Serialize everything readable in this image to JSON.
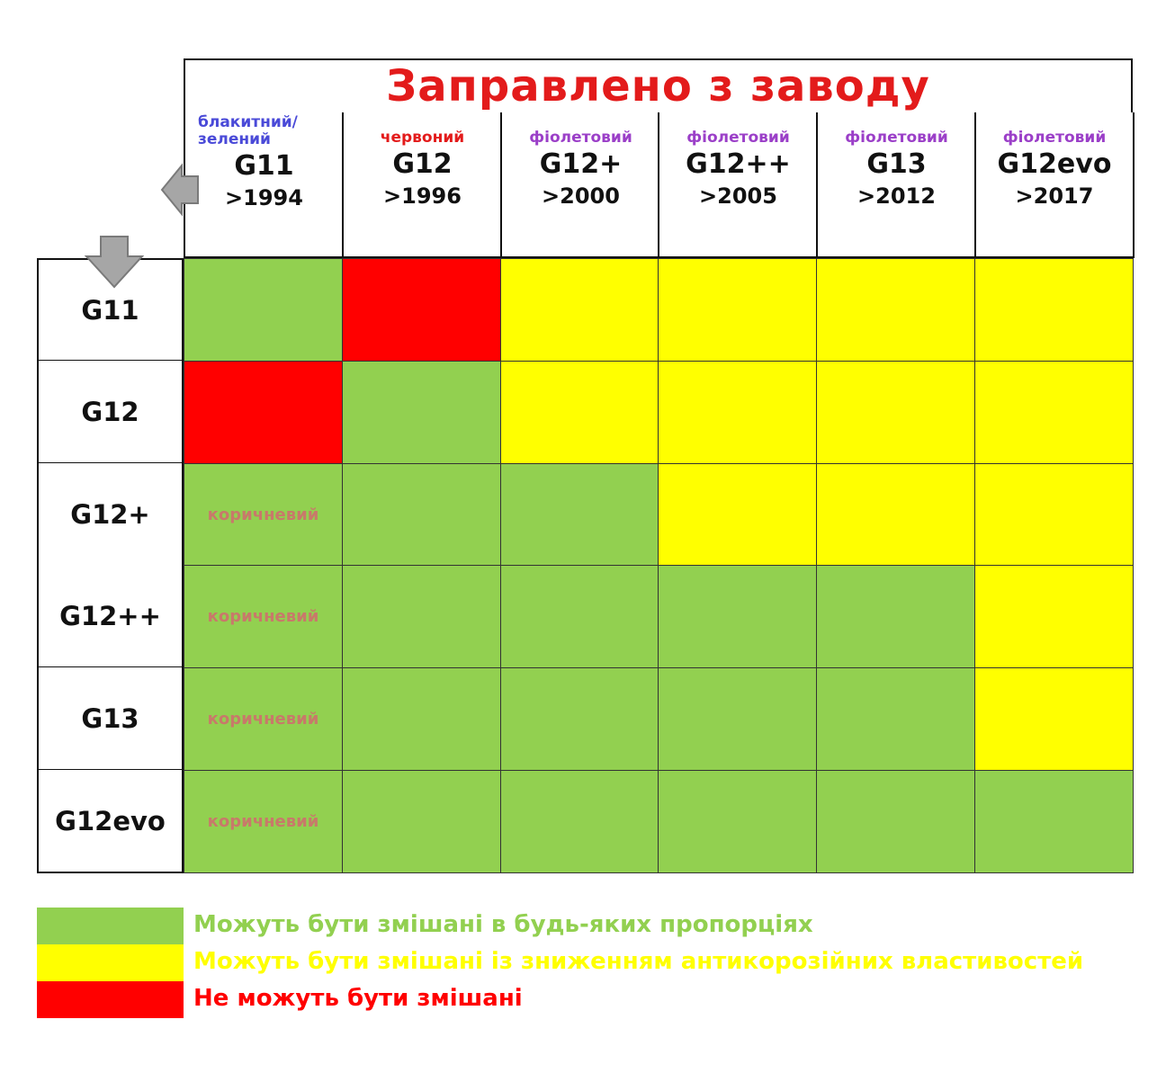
{
  "chart_data": {
    "type": "table",
    "title": "Заправлено з заводу",
    "columns": [
      {
        "color_label": "блакитний/\nзелений",
        "color": "#4a4ad8",
        "code": "G11",
        "year": ">1994"
      },
      {
        "color_label": "червоний",
        "color": "#e31b1b",
        "code": "G12",
        "year": ">1996"
      },
      {
        "color_label": "фіолетовий",
        "color": "#9b3fc8",
        "code": "G12+",
        "year": ">2000"
      },
      {
        "color_label": "фіолетовий",
        "color": "#9b3fc8",
        "code": "G12++",
        "year": ">2005"
      },
      {
        "color_label": "фіолетовий",
        "color": "#9b3fc8",
        "code": "G13",
        "year": ">2012"
      },
      {
        "color_label": "фіолетовий",
        "color": "#9b3fc8",
        "code": "G12evo",
        "year": ">2017"
      }
    ],
    "rows": [
      "G11",
      "G12",
      "G12+",
      "G12++",
      "G13",
      "G12evo"
    ],
    "matrix": [
      [
        "green",
        "red",
        "yellow",
        "yellow",
        "yellow",
        "yellow"
      ],
      [
        "red",
        "green",
        "yellow",
        "yellow",
        "yellow",
        "yellow"
      ],
      [
        "green",
        "green",
        "green",
        "yellow",
        "yellow",
        "yellow"
      ],
      [
        "green",
        "green",
        "green",
        "green",
        "green",
        "yellow"
      ],
      [
        "green",
        "green",
        "green",
        "green",
        "green",
        "yellow"
      ],
      [
        "green",
        "green",
        "green",
        "green",
        "green",
        "green"
      ]
    ],
    "cell_notes": [
      {
        "row": 2,
        "col": 0,
        "text": "коричневий"
      },
      {
        "row": 3,
        "col": 0,
        "text": "коричневий"
      },
      {
        "row": 4,
        "col": 0,
        "text": "коричневий"
      },
      {
        "row": 5,
        "col": 0,
        "text": "коричневий"
      }
    ],
    "colors": {
      "green": "#92d050",
      "yellow": "#ffff00",
      "red": "#ff0000"
    },
    "legend": [
      {
        "key": "green",
        "text": "Можуть бути змішані в будь-яких пропорціях",
        "text_color": "#92d050"
      },
      {
        "key": "yellow",
        "text": "Можуть бути змішані із зниженням антикорозійних властивостей",
        "text_color": "#ffff00"
      },
      {
        "key": "red",
        "text": "Не можуть бути змішані",
        "text_color": "#ff0000"
      }
    ]
  },
  "icons": [
    "arrow-left-icon",
    "arrow-down-icon"
  ]
}
